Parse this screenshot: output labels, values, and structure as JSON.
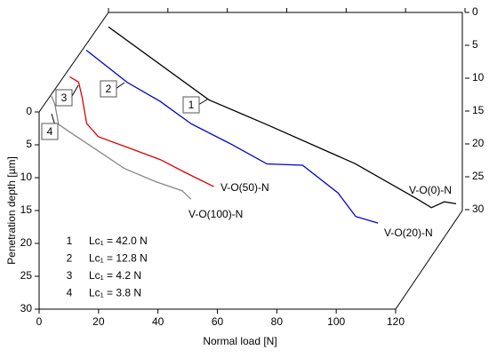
{
  "chart_data": {
    "type": "line",
    "xlabel": "Normal load [N]",
    "ylabel": "Penetration depth [µm]",
    "xlim": [
      0,
      120
    ],
    "xticks": [
      0,
      20,
      40,
      60,
      80,
      100,
      120
    ],
    "ylim": [
      0,
      30
    ],
    "yticks": [
      0,
      5,
      10,
      15,
      20,
      25,
      30
    ],
    "y2lim": [
      0,
      30
    ],
    "y2ticks": [
      0,
      5,
      10,
      15,
      20,
      25,
      30
    ],
    "series": [
      {
        "name": "V-O(0)-N",
        "color": "#000000",
        "axis": "y2",
        "x": [
          0,
          33.8,
          53,
          83,
          104,
          108.7,
          113,
          117
        ],
        "values": [
          2.2,
          13.3,
          17,
          23,
          28.4,
          29.7,
          28.8,
          29.1
        ]
      },
      {
        "name": "V-O(20)-N",
        "color": "#0000cc",
        "x": [
          0,
          13.8,
          24.9,
          35.3,
          48.8,
          60.8,
          72.8,
          84.7,
          90.7,
          98.2
        ],
        "values": [
          0.9,
          5.8,
          8.7,
          12.1,
          15.2,
          18.2,
          18.4,
          22.6,
          26.2,
          27.2
        ]
      },
      {
        "name": "V-O(50)-N",
        "color": "#e00000",
        "x": [
          3.3,
          6.3,
          7.5,
          9,
          12.9,
          21.9,
          33.8,
          42.8,
          51.8
        ],
        "values": [
          -0.8,
          0,
          2.4,
          6.3,
          8.3,
          9.8,
          11.8,
          13.9,
          15.9
        ]
      },
      {
        "name": "V-O(100)-N",
        "color": "#888888",
        "x": [
          1.8,
          3,
          4.2,
          8.4,
          17.4,
          26.3,
          36.8,
          45.8,
          48.8
        ],
        "values": [
          -0.9,
          0.4,
          3.4,
          4.7,
          7.4,
          10.1,
          12.1,
          13.5,
          14.8
        ]
      }
    ],
    "annotations": [
      {
        "id": "1",
        "text": "Lc₁ = 42.0 N"
      },
      {
        "id": "2",
        "text": "Lc₁ = 12.8 N"
      },
      {
        "id": "3",
        "text": "Lc₁ = 4.2 N"
      },
      {
        "id": "4",
        "text": "Lc₁ = 3.8 N"
      }
    ]
  }
}
